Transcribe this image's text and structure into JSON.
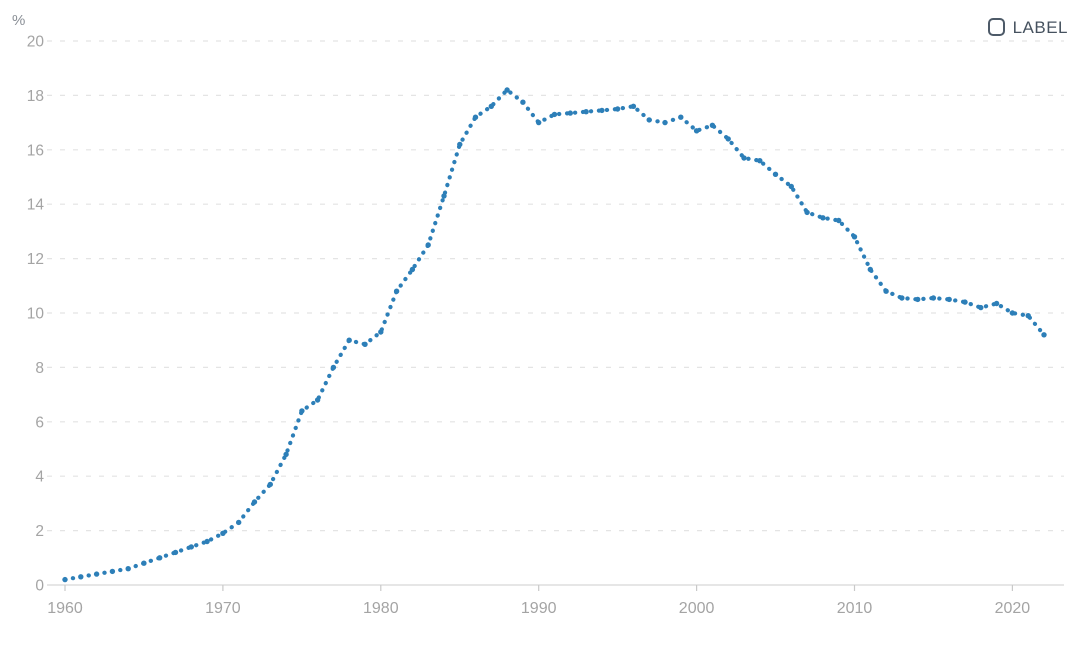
{
  "chart": {
    "legend": {
      "label": "LABEL",
      "checked": false
    }
  },
  "chart_data": {
    "type": "line",
    "style": "dotted",
    "title": "",
    "xlabel": "",
    "ylabel": "%",
    "ylim": [
      0,
      20
    ],
    "xlim": [
      1959,
      2023
    ],
    "grid": "dashed-horizontal",
    "legend_position": "top-right",
    "y_ticks": [
      0,
      2,
      4,
      6,
      8,
      10,
      12,
      14,
      16,
      18,
      20
    ],
    "x_label_ticks": [
      1960,
      1970,
      1980,
      1990,
      2000,
      2010,
      2020
    ],
    "line_color": "#2d7fb8",
    "grid_color": "#e4e4e4",
    "axis_color": "#d8d8d8",
    "tick_color": "#c9c9c9",
    "tick_label_color": "#a4a4a4",
    "unit_label_color": "#8a8f96",
    "x": [
      1960,
      1961,
      1962,
      1963,
      1964,
      1965,
      1966,
      1967,
      1968,
      1969,
      1970,
      1971,
      1972,
      1973,
      1974,
      1975,
      1976,
      1977,
      1978,
      1979,
      1980,
      1981,
      1982,
      1983,
      1984,
      1985,
      1986,
      1987,
      1988,
      1989,
      1990,
      1991,
      1992,
      1993,
      1994,
      1995,
      1996,
      1997,
      1998,
      1999,
      2000,
      2001,
      2002,
      2003,
      2004,
      2005,
      2006,
      2007,
      2008,
      2009,
      2010,
      2011,
      2012,
      2013,
      2014,
      2015,
      2016,
      2017,
      2018,
      2019,
      2020,
      2021,
      2022
    ],
    "values": [
      0.2,
      0.3,
      0.4,
      0.5,
      0.6,
      0.8,
      1.0,
      1.2,
      1.4,
      1.6,
      1.9,
      2.3,
      3.05,
      3.7,
      4.8,
      6.4,
      6.8,
      8.0,
      9.0,
      8.85,
      9.3,
      10.8,
      11.6,
      12.5,
      14.3,
      16.2,
      17.2,
      17.6,
      18.2,
      17.75,
      17.0,
      17.3,
      17.35,
      17.4,
      17.45,
      17.5,
      17.6,
      17.1,
      17.0,
      17.2,
      16.7,
      16.9,
      16.4,
      15.7,
      15.6,
      15.1,
      14.65,
      13.7,
      13.5,
      13.4,
      12.8,
      11.6,
      10.8,
      10.55,
      10.5,
      10.55,
      10.5,
      10.4,
      10.2,
      10.35,
      10.0,
      9.9,
      9.2
    ]
  }
}
